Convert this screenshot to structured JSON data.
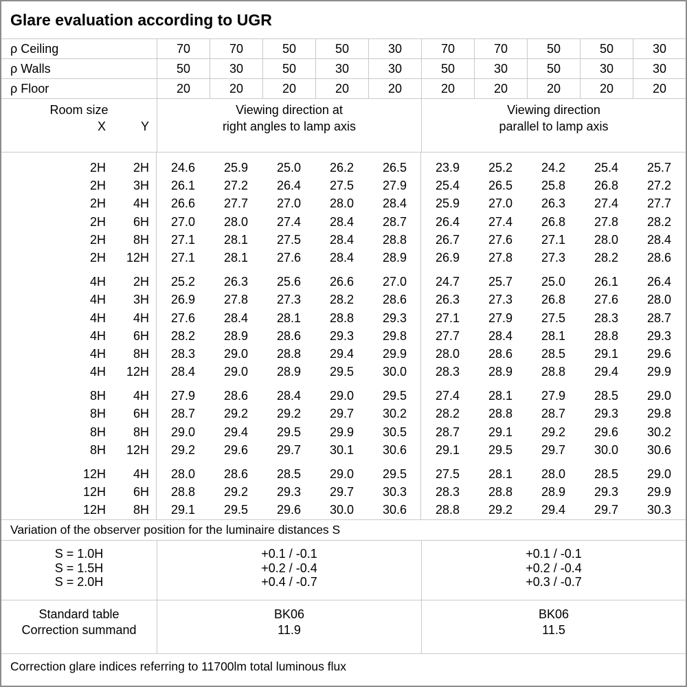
{
  "title": "Glare evaluation according to UGR",
  "reflectance_rows": [
    {
      "label": "ρ Ceiling",
      "values": [
        "70",
        "70",
        "50",
        "50",
        "30",
        "70",
        "70",
        "50",
        "50",
        "30"
      ]
    },
    {
      "label": "ρ Walls",
      "values": [
        "50",
        "30",
        "50",
        "30",
        "30",
        "50",
        "30",
        "50",
        "30",
        "30"
      ]
    },
    {
      "label": "ρ Floor",
      "values": [
        "20",
        "20",
        "20",
        "20",
        "20",
        "20",
        "20",
        "20",
        "20",
        "20"
      ]
    }
  ],
  "room_size": {
    "label": "Room size",
    "x": "X",
    "y": "Y"
  },
  "viewing_left": {
    "line1": "Viewing direction at",
    "line2": "right angles to lamp axis"
  },
  "viewing_right": {
    "line1": "Viewing direction",
    "line2": "parallel to lamp axis"
  },
  "ugr_groups": [
    {
      "rows": [
        {
          "x": "2H",
          "y": "2H",
          "left": [
            "24.6",
            "25.9",
            "25.0",
            "26.2",
            "26.5"
          ],
          "right": [
            "23.9",
            "25.2",
            "24.2",
            "25.4",
            "25.7"
          ]
        },
        {
          "x": "2H",
          "y": "3H",
          "left": [
            "26.1",
            "27.2",
            "26.4",
            "27.5",
            "27.9"
          ],
          "right": [
            "25.4",
            "26.5",
            "25.8",
            "26.8",
            "27.2"
          ]
        },
        {
          "x": "2H",
          "y": "4H",
          "left": [
            "26.6",
            "27.7",
            "27.0",
            "28.0",
            "28.4"
          ],
          "right": [
            "25.9",
            "27.0",
            "26.3",
            "27.4",
            "27.7"
          ]
        },
        {
          "x": "2H",
          "y": "6H",
          "left": [
            "27.0",
            "28.0",
            "27.4",
            "28.4",
            "28.7"
          ],
          "right": [
            "26.4",
            "27.4",
            "26.8",
            "27.8",
            "28.2"
          ]
        },
        {
          "x": "2H",
          "y": "8H",
          "left": [
            "27.1",
            "28.1",
            "27.5",
            "28.4",
            "28.8"
          ],
          "right": [
            "26.7",
            "27.6",
            "27.1",
            "28.0",
            "28.4"
          ]
        },
        {
          "x": "2H",
          "y": "12H",
          "left": [
            "27.1",
            "28.1",
            "27.6",
            "28.4",
            "28.9"
          ],
          "right": [
            "26.9",
            "27.8",
            "27.3",
            "28.2",
            "28.6"
          ]
        }
      ]
    },
    {
      "rows": [
        {
          "x": "4H",
          "y": "2H",
          "left": [
            "25.2",
            "26.3",
            "25.6",
            "26.6",
            "27.0"
          ],
          "right": [
            "24.7",
            "25.7",
            "25.0",
            "26.1",
            "26.4"
          ]
        },
        {
          "x": "4H",
          "y": "3H",
          "left": [
            "26.9",
            "27.8",
            "27.3",
            "28.2",
            "28.6"
          ],
          "right": [
            "26.3",
            "27.3",
            "26.8",
            "27.6",
            "28.0"
          ]
        },
        {
          "x": "4H",
          "y": "4H",
          "left": [
            "27.6",
            "28.4",
            "28.1",
            "28.8",
            "29.3"
          ],
          "right": [
            "27.1",
            "27.9",
            "27.5",
            "28.3",
            "28.7"
          ]
        },
        {
          "x": "4H",
          "y": "6H",
          "left": [
            "28.2",
            "28.9",
            "28.6",
            "29.3",
            "29.8"
          ],
          "right": [
            "27.7",
            "28.4",
            "28.1",
            "28.8",
            "29.3"
          ]
        },
        {
          "x": "4H",
          "y": "8H",
          "left": [
            "28.3",
            "29.0",
            "28.8",
            "29.4",
            "29.9"
          ],
          "right": [
            "28.0",
            "28.6",
            "28.5",
            "29.1",
            "29.6"
          ]
        },
        {
          "x": "4H",
          "y": "12H",
          "left": [
            "28.4",
            "29.0",
            "28.9",
            "29.5",
            "30.0"
          ],
          "right": [
            "28.3",
            "28.9",
            "28.8",
            "29.4",
            "29.9"
          ]
        }
      ]
    },
    {
      "rows": [
        {
          "x": "8H",
          "y": "4H",
          "left": [
            "27.9",
            "28.6",
            "28.4",
            "29.0",
            "29.5"
          ],
          "right": [
            "27.4",
            "28.1",
            "27.9",
            "28.5",
            "29.0"
          ]
        },
        {
          "x": "8H",
          "y": "6H",
          "left": [
            "28.7",
            "29.2",
            "29.2",
            "29.7",
            "30.2"
          ],
          "right": [
            "28.2",
            "28.8",
            "28.7",
            "29.3",
            "29.8"
          ]
        },
        {
          "x": "8H",
          "y": "8H",
          "left": [
            "29.0",
            "29.4",
            "29.5",
            "29.9",
            "30.5"
          ],
          "right": [
            "28.7",
            "29.1",
            "29.2",
            "29.6",
            "30.2"
          ]
        },
        {
          "x": "8H",
          "y": "12H",
          "left": [
            "29.2",
            "29.6",
            "29.7",
            "30.1",
            "30.6"
          ],
          "right": [
            "29.1",
            "29.5",
            "29.7",
            "30.0",
            "30.6"
          ]
        }
      ]
    },
    {
      "rows": [
        {
          "x": "12H",
          "y": "4H",
          "left": [
            "28.0",
            "28.6",
            "28.5",
            "29.0",
            "29.5"
          ],
          "right": [
            "27.5",
            "28.1",
            "28.0",
            "28.5",
            "29.0"
          ]
        },
        {
          "x": "12H",
          "y": "6H",
          "left": [
            "28.8",
            "29.2",
            "29.3",
            "29.7",
            "30.3"
          ],
          "right": [
            "28.3",
            "28.8",
            "28.9",
            "29.3",
            "29.9"
          ]
        },
        {
          "x": "12H",
          "y": "8H",
          "left": [
            "29.1",
            "29.5",
            "29.6",
            "30.0",
            "30.6"
          ],
          "right": [
            "28.8",
            "29.2",
            "29.4",
            "29.7",
            "30.3"
          ]
        }
      ]
    }
  ],
  "variation_note": "Variation of the observer position for the luminaire distances S",
  "s_rows": [
    {
      "label": "S = 1.0H",
      "left": "+0.1 / -0.1",
      "right": "+0.1 / -0.1"
    },
    {
      "label": "S = 1.5H",
      "left": "+0.2 / -0.4",
      "right": "+0.2 / -0.4"
    },
    {
      "label": "S = 2.0H",
      "left": "+0.4 / -0.7",
      "right": "+0.3 / -0.7"
    }
  ],
  "summary": {
    "standard_table_label": "Standard table",
    "correction_summand_label": "Correction summand",
    "standard_table_left": "BK06",
    "standard_table_right": "BK06",
    "correction_summand_left": "11.9",
    "correction_summand_right": "11.5"
  },
  "footer": "Correction glare indices referring to 11700lm total luminous flux"
}
